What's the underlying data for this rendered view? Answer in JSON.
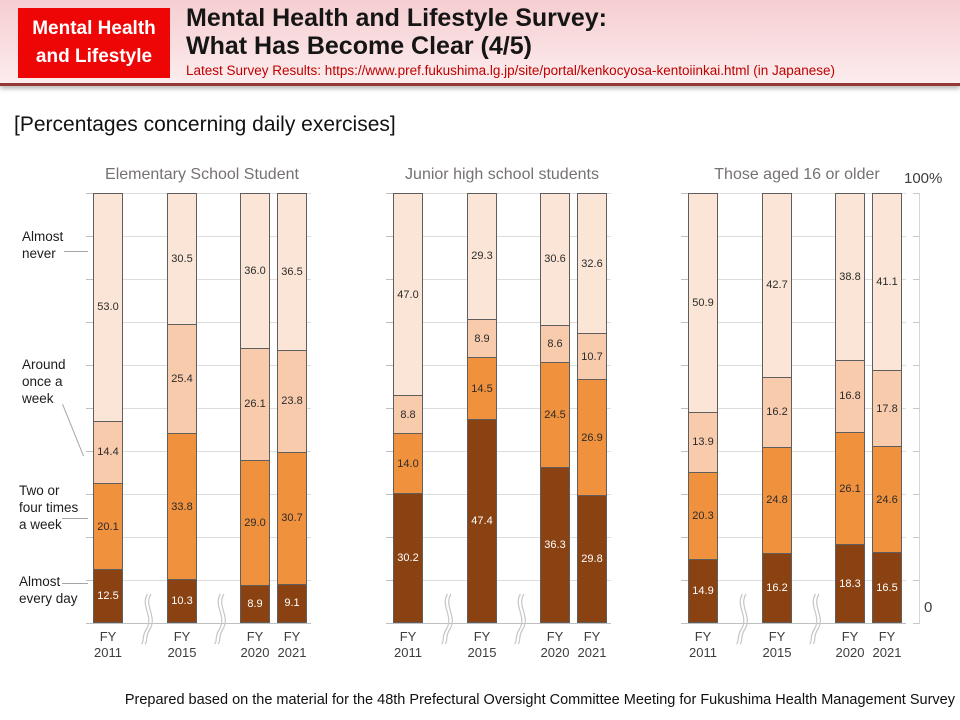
{
  "header": {
    "badge": {
      "line1": "Mental Health",
      "line2": "and Lifestyle"
    },
    "title_line1": "Mental Health and Lifestyle Survey:",
    "title_line2": "What Has Become Clear (4/5)",
    "subtitle": "Latest Survey Results: https://www.pref.fukushima.lg.jp/site/portal/kenkocyosa-kentoiinkai.html (in Japanese)"
  },
  "section_heading": "[Percentages concerning daily exercises]",
  "y_axis": {
    "top_label": "100%",
    "bottom_label": "0"
  },
  "side_labels": [
    {
      "lines": [
        "Almost",
        "never"
      ]
    },
    {
      "lines": [
        "Around",
        "once a",
        "week"
      ]
    },
    {
      "lines": [
        "Two or",
        "four times",
        "a week"
      ]
    },
    {
      "lines": [
        "Almost",
        "every day"
      ]
    }
  ],
  "chart_data": {
    "type": "bar",
    "stacked": true,
    "unit": "%",
    "ylim": [
      0,
      100
    ],
    "grid": true,
    "categories": [
      "FY 2011",
      "FY 2015",
      "FY 2020",
      "FY 2021"
    ],
    "x_ticks": [
      {
        "line1": "FY",
        "line2": "2011"
      },
      {
        "line1": "FY",
        "line2": "2015"
      },
      {
        "line1": "FY",
        "line2": "2020"
      },
      {
        "line1": "FY",
        "line2": "2021"
      }
    ],
    "series_order": "bottom to top",
    "series_defs": [
      {
        "name": "Almost every day",
        "color": "#8A4212",
        "label_color": "#FFFFFF"
      },
      {
        "name": "Two or four times a week",
        "color": "#F0913E",
        "label_color": "#2B2B2B"
      },
      {
        "name": "Around once a week",
        "color": "#F8CBAD",
        "label_color": "#2B2B2B"
      },
      {
        "name": "Almost never",
        "color": "#FBE5D6",
        "label_color": "#2B2B2B"
      }
    ],
    "charts": [
      {
        "title": "Elementary School Student",
        "series": [
          {
            "name": "Almost every day",
            "values": [
              12.5,
              10.3,
              8.9,
              9.1
            ]
          },
          {
            "name": "Two or four times a week",
            "values": [
              20.1,
              33.8,
              29.0,
              30.7
            ]
          },
          {
            "name": "Around once a week",
            "values": [
              14.4,
              25.4,
              26.1,
              23.8
            ]
          },
          {
            "name": "Almost never",
            "values": [
              53.0,
              30.5,
              36.0,
              36.5
            ]
          }
        ]
      },
      {
        "title": "Junior high school students",
        "series": [
          {
            "name": "Almost every day",
            "values": [
              30.2,
              47.4,
              36.3,
              29.8
            ]
          },
          {
            "name": "Two or four times a week",
            "values": [
              14.0,
              14.5,
              24.5,
              26.9
            ]
          },
          {
            "name": "Around once a week",
            "values": [
              8.8,
              8.9,
              8.6,
              10.7
            ]
          },
          {
            "name": "Almost never",
            "values": [
              47.0,
              29.3,
              30.6,
              32.6
            ]
          }
        ]
      },
      {
        "title": "Those aged 16 or older",
        "series": [
          {
            "name": "Almost every day",
            "values": [
              14.9,
              16.2,
              18.3,
              16.5
            ]
          },
          {
            "name": "Two or four times a week",
            "values": [
              20.3,
              24.8,
              26.1,
              24.6
            ]
          },
          {
            "name": "Around once a week",
            "values": [
              13.9,
              16.2,
              16.8,
              17.8
            ]
          },
          {
            "name": "Almost never",
            "values": [
              50.9,
              42.7,
              38.8,
              41.1
            ]
          }
        ]
      }
    ]
  },
  "footer": "Prepared based on the material for the 48th Prefectural Oversight Committee Meeting for Fukushima Health Management Survey"
}
